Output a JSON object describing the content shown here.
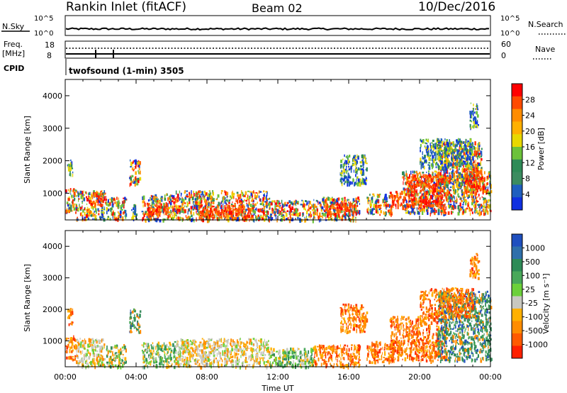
{
  "header": {
    "station": "Rankin Inlet (fitACF)",
    "beam": "Beam 02",
    "date": "10/Dec/2016"
  },
  "noise_panel": {
    "left_label": "N.Sky",
    "right_label": "N.Search",
    "left_ticks": [
      "10^5",
      "10^0"
    ],
    "right_ticks": [
      "10^5",
      "10^0"
    ]
  },
  "freq_panel": {
    "left_label_1": "Freq.",
    "left_label_2": "[MHz]",
    "left_ticks": [
      "18",
      "8"
    ],
    "right_label": "Nave",
    "right_ticks": [
      "60",
      "0"
    ],
    "cpid_label": "CPID",
    "mode_text": "twofsound (1-min) 3505"
  },
  "chart_data": [
    {
      "type": "heatmap",
      "name": "power",
      "ylabel": "Slant Range [km]",
      "xlabel": "",
      "ylim": [
        180,
        4500
      ],
      "yticks": [
        1000,
        2000,
        3000,
        4000
      ],
      "xlim_hours": [
        0,
        24
      ],
      "colorbar_label": "Power [dB]",
      "colorbar_ticks": [
        "28",
        "24",
        "20",
        "16",
        "12",
        "8",
        "4"
      ],
      "colorbar_colors": [
        "#ff0000",
        "#ff4a00",
        "#ff8c00",
        "#ffb000",
        "#e8d800",
        "#6cc23a",
        "#2e8b57",
        "#3c8c60",
        "#1f5fbf",
        "#1030e0"
      ],
      "echo_regions": [
        {
          "t": [
            0.0,
            0.6
          ],
          "r": [
            420,
            1200
          ],
          "kind": "mixed"
        },
        {
          "t": [
            0.1,
            0.4
          ],
          "r": [
            1550,
            2050
          ],
          "kind": "weak"
        },
        {
          "t": [
            0.6,
            2.2
          ],
          "r": [
            200,
            1100
          ],
          "kind": "mixed"
        },
        {
          "t": [
            1.4,
            2.3
          ],
          "r": [
            650,
            1050
          ],
          "kind": "strong"
        },
        {
          "t": [
            2.3,
            3.4
          ],
          "r": [
            200,
            900
          ],
          "kind": "mixed"
        },
        {
          "t": [
            3.6,
            4.2
          ],
          "r": [
            1300,
            2050
          ],
          "kind": "mixed"
        },
        {
          "t": [
            3.7,
            4.0
          ],
          "r": [
            200,
            700
          ],
          "kind": "weak"
        },
        {
          "t": [
            4.3,
            6.2
          ],
          "r": [
            200,
            1000
          ],
          "kind": "mixed"
        },
        {
          "t": [
            4.6,
            5.8
          ],
          "r": [
            300,
            700
          ],
          "kind": "strong"
        },
        {
          "t": [
            6.2,
            11.5
          ],
          "r": [
            200,
            1100
          ],
          "kind": "mixed"
        },
        {
          "t": [
            7.5,
            10.5
          ],
          "r": [
            250,
            650
          ],
          "kind": "strong"
        },
        {
          "t": [
            11.5,
            14.0
          ],
          "r": [
            200,
            800
          ],
          "kind": "mixed"
        },
        {
          "t": [
            14.0,
            16.6
          ],
          "r": [
            200,
            900
          ],
          "kind": "mixed"
        },
        {
          "t": [
            14.6,
            16.4
          ],
          "r": [
            350,
            750
          ],
          "kind": "strong"
        },
        {
          "t": [
            15.5,
            17.0
          ],
          "r": [
            1300,
            2200
          ],
          "kind": "weak"
        },
        {
          "t": [
            17.0,
            18.5
          ],
          "r": [
            350,
            1000
          ],
          "kind": "mixed"
        },
        {
          "t": [
            18.3,
            19.2
          ],
          "r": [
            600,
            1100
          ],
          "kind": "strong"
        },
        {
          "t": [
            19.0,
            24.0
          ],
          "r": [
            400,
            1700
          ],
          "kind": "mixed"
        },
        {
          "t": [
            19.2,
            21.5
          ],
          "r": [
            600,
            1600
          ],
          "kind": "strong"
        },
        {
          "t": [
            21.0,
            23.5
          ],
          "r": [
            1200,
            2600
          ],
          "kind": "mixed"
        },
        {
          "t": [
            20.0,
            23.0
          ],
          "r": [
            1800,
            2700
          ],
          "kind": "weak"
        },
        {
          "t": [
            22.8,
            23.3
          ],
          "r": [
            3000,
            3800
          ],
          "kind": "weak"
        },
        {
          "t": [
            22.5,
            23.6
          ],
          "r": [
            1000,
            1800
          ],
          "kind": "strong"
        }
      ]
    },
    {
      "type": "heatmap",
      "name": "velocity",
      "ylabel": "Slant Range [km]",
      "xlabel": "Time UT",
      "ylim": [
        180,
        4500
      ],
      "yticks": [
        1000,
        2000,
        3000,
        4000
      ],
      "xlim_hours": [
        0,
        24
      ],
      "xticks": [
        "00:00",
        "04:00",
        "08:00",
        "12:00",
        "16:00",
        "20:00",
        "00:00"
      ],
      "colorbar_label": "Velocity [m s⁻¹]",
      "colorbar_ticks": [
        "1000",
        "500",
        "100",
        "25",
        "-25",
        "-100",
        "-500",
        "-1000"
      ],
      "colorbar_colors": [
        "#1f4fbf",
        "#2f6faa",
        "#2e8b57",
        "#49a85a",
        "#6cd03a",
        "#c8c8c0",
        "#ffb000",
        "#ff8c00",
        "#ff5a00",
        "#ff2000"
      ],
      "echo_regions": [
        {
          "t": [
            0.0,
            0.6
          ],
          "r": [
            420,
            1200
          ],
          "kind": "warm"
        },
        {
          "t": [
            0.1,
            0.4
          ],
          "r": [
            1550,
            2050
          ],
          "kind": "warm"
        },
        {
          "t": [
            0.6,
            2.2
          ],
          "r": [
            200,
            1100
          ],
          "kind": "warmgray"
        },
        {
          "t": [
            2.3,
            3.4
          ],
          "r": [
            200,
            900
          ],
          "kind": "mixed"
        },
        {
          "t": [
            3.6,
            4.2
          ],
          "r": [
            1300,
            2050
          ],
          "kind": "cool"
        },
        {
          "t": [
            4.3,
            6.2
          ],
          "r": [
            200,
            1000
          ],
          "kind": "green"
        },
        {
          "t": [
            6.2,
            11.5
          ],
          "r": [
            200,
            1100
          ],
          "kind": "warmgray"
        },
        {
          "t": [
            11.5,
            14.0
          ],
          "r": [
            200,
            800
          ],
          "kind": "green"
        },
        {
          "t": [
            14.0,
            16.6
          ],
          "r": [
            200,
            900
          ],
          "kind": "warm"
        },
        {
          "t": [
            15.5,
            17.0
          ],
          "r": [
            1300,
            2200
          ],
          "kind": "warm"
        },
        {
          "t": [
            17.0,
            18.5
          ],
          "r": [
            350,
            1000
          ],
          "kind": "warm"
        },
        {
          "t": [
            18.3,
            21.5
          ],
          "r": [
            400,
            1800
          ],
          "kind": "warm"
        },
        {
          "t": [
            21.0,
            24.0
          ],
          "r": [
            400,
            2600
          ],
          "kind": "cool"
        },
        {
          "t": [
            20.0,
            23.0
          ],
          "r": [
            1800,
            2700
          ],
          "kind": "warm"
        },
        {
          "t": [
            22.8,
            23.3
          ],
          "r": [
            3000,
            3800
          ],
          "kind": "warm"
        }
      ]
    }
  ]
}
